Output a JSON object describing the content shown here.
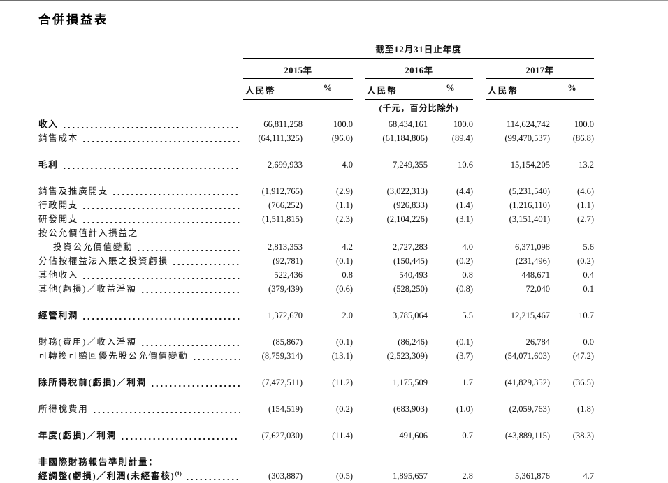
{
  "title": "合併損益表",
  "table": {
    "period_header": "截至12月31日止年度",
    "unit_note": "(千元，百分比除外)",
    "years": [
      {
        "label": "2015年",
        "currency": "人民幣",
        "percent": "%"
      },
      {
        "label": "2016年",
        "currency": "人民幣",
        "percent": "%"
      },
      {
        "label": "2017年",
        "currency": "人民幣",
        "percent": "%"
      }
    ],
    "rows": [
      {
        "label": "收入",
        "bold": true,
        "leader": true,
        "space_before": false,
        "indent": false,
        "values": [
          "66,811,258",
          "100.0",
          "68,434,161",
          "100.0",
          "114,624,742",
          "100.0"
        ]
      },
      {
        "label": "銷售成本",
        "bold": false,
        "leader": true,
        "space_before": false,
        "indent": false,
        "values": [
          "(64,111,325)",
          "(96.0)",
          "(61,184,806)",
          "(89.4)",
          "(99,470,537)",
          "(86.8)"
        ]
      },
      {
        "label": "毛利",
        "bold": true,
        "leader": true,
        "space_before": true,
        "indent": false,
        "values": [
          "2,699,933",
          "4.0",
          "7,249,355",
          "10.6",
          "15,154,205",
          "13.2"
        ]
      },
      {
        "label": "銷售及推廣開支",
        "bold": false,
        "leader": true,
        "space_before": true,
        "indent": false,
        "values": [
          "(1,912,765)",
          "(2.9)",
          "(3,022,313)",
          "(4.4)",
          "(5,231,540)",
          "(4.6)"
        ]
      },
      {
        "label": "行政開支",
        "bold": false,
        "leader": true,
        "space_before": false,
        "indent": false,
        "values": [
          "(766,252)",
          "(1.1)",
          "(926,833)",
          "(1.4)",
          "(1,216,110)",
          "(1.1)"
        ]
      },
      {
        "label": "研發開支",
        "bold": false,
        "leader": true,
        "space_before": false,
        "indent": false,
        "values": [
          "(1,511,815)",
          "(2.3)",
          "(2,104,226)",
          "(3.1)",
          "(3,151,401)",
          "(2.7)"
        ]
      },
      {
        "label": "按公允價值計入損益之",
        "bold": false,
        "leader": false,
        "space_before": false,
        "indent": false,
        "values": []
      },
      {
        "label": "投資公允價值變動",
        "bold": false,
        "leader": true,
        "space_before": false,
        "indent": true,
        "values": [
          "2,813,353",
          "4.2",
          "2,727,283",
          "4.0",
          "6,371,098",
          "5.6"
        ]
      },
      {
        "label": "分佔按權益法入賬之投資虧損",
        "bold": false,
        "leader": true,
        "space_before": false,
        "indent": false,
        "values": [
          "(92,781)",
          "(0.1)",
          "(150,445)",
          "(0.2)",
          "(231,496)",
          "(0.2)"
        ]
      },
      {
        "label": "其他收入",
        "bold": false,
        "leader": true,
        "space_before": false,
        "indent": false,
        "values": [
          "522,436",
          "0.8",
          "540,493",
          "0.8",
          "448,671",
          "0.4"
        ]
      },
      {
        "label": "其他(虧損)／收益淨額",
        "bold": false,
        "leader": true,
        "space_before": false,
        "indent": false,
        "values": [
          "(379,439)",
          "(0.6)",
          "(528,250)",
          "(0.8)",
          "72,040",
          "0.1"
        ]
      },
      {
        "label": "經營利潤",
        "bold": true,
        "leader": true,
        "space_before": true,
        "indent": false,
        "values": [
          "1,372,670",
          "2.0",
          "3,785,064",
          "5.5",
          "12,215,467",
          "10.7"
        ]
      },
      {
        "label": "財務(費用)／收入淨額",
        "bold": false,
        "leader": true,
        "space_before": true,
        "indent": false,
        "values": [
          "(85,867)",
          "(0.1)",
          "(86,246)",
          "(0.1)",
          "26,784",
          "0.0"
        ]
      },
      {
        "label": "可轉換可贖回優先股公允價值變動",
        "bold": false,
        "leader": true,
        "space_before": false,
        "indent": false,
        "values": [
          "(8,759,314)",
          "(13.1)",
          "(2,523,309)",
          "(3.7)",
          "(54,071,603)",
          "(47.2)"
        ]
      },
      {
        "label": "除所得稅前(虧損)／利潤",
        "bold": true,
        "leader": true,
        "space_before": true,
        "indent": false,
        "values": [
          "(7,472,511)",
          "(11.2)",
          "1,175,509",
          "1.7",
          "(41,829,352)",
          "(36.5)"
        ]
      },
      {
        "label": "所得稅費用",
        "bold": false,
        "leader": true,
        "space_before": true,
        "indent": false,
        "values": [
          "(154,519)",
          "(0.2)",
          "(683,903)",
          "(1.0)",
          "(2,059,763)",
          "(1.8)"
        ]
      },
      {
        "label": "年度(虧損)／利潤",
        "bold": true,
        "leader": true,
        "space_before": true,
        "indent": false,
        "values": [
          "(7,627,030)",
          "(11.4)",
          "491,606",
          "0.7",
          "(43,889,115)",
          "(38.3)"
        ]
      },
      {
        "label": "非國際財務報告準則計量：",
        "bold": true,
        "leader": false,
        "space_before": true,
        "indent": false,
        "values": []
      },
      {
        "label": "經調整(虧損)／利潤(未經審核)",
        "sup": "(1)",
        "bold": true,
        "leader": true,
        "space_before": false,
        "indent": false,
        "values": [
          "(303,887)",
          "(0.5)",
          "1,895,657",
          "2.8",
          "5,361,876",
          "4.7"
        ]
      }
    ]
  }
}
